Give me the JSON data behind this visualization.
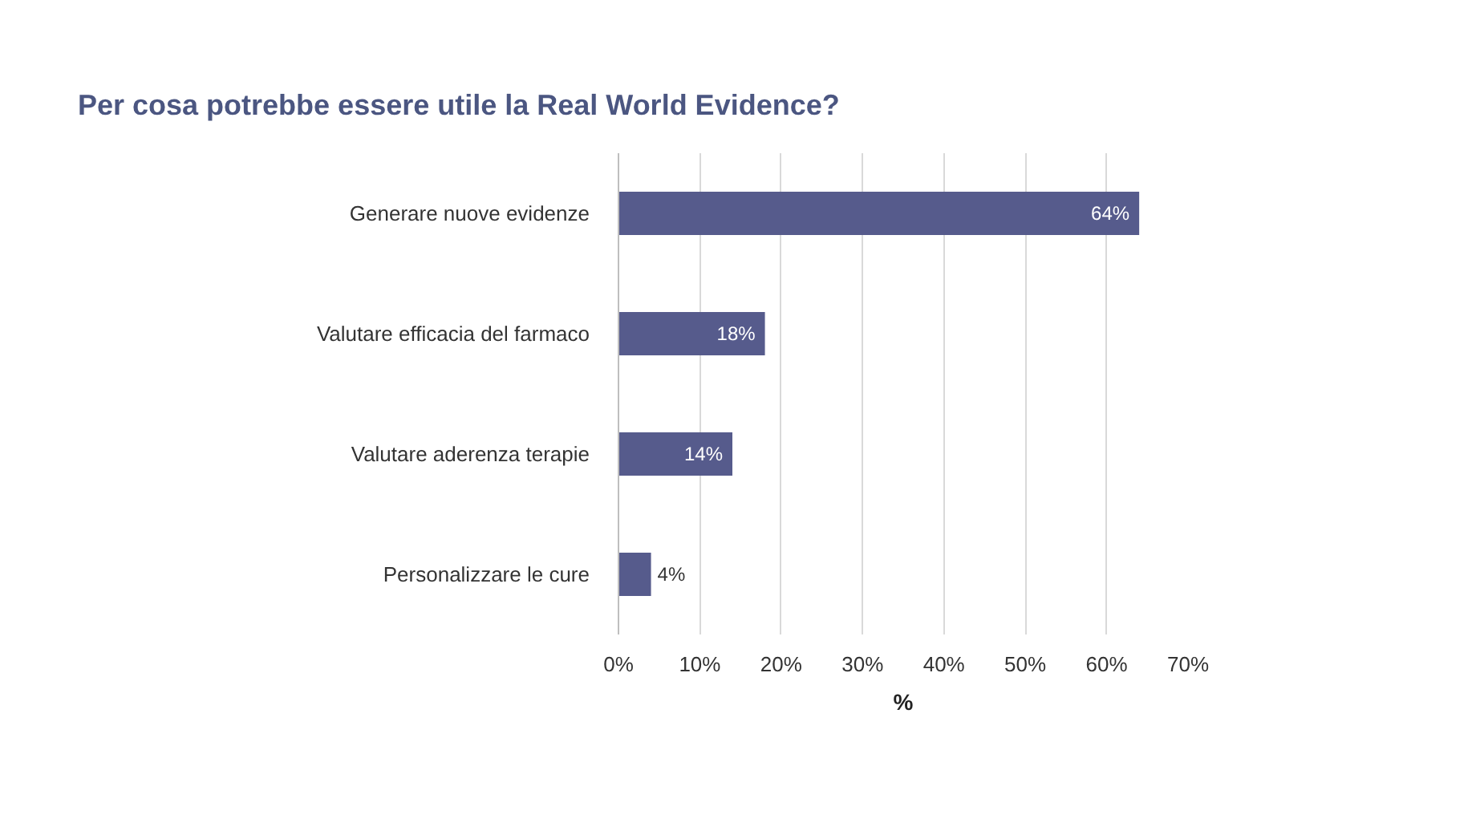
{
  "chart_data": {
    "type": "bar",
    "orientation": "horizontal",
    "title": "Per cosa potrebbe essere utile la Real World Evidence?",
    "xlabel": "%",
    "categories": [
      "Generare nuove evidenze",
      "Valutare efficacia del farmaco",
      "Valutare aderenza terapie",
      "Personalizzare le cure"
    ],
    "values": [
      64,
      18,
      14,
      4
    ],
    "color": "#565b8c",
    "data_labels": true,
    "value_labels": [
      "64%",
      "18%",
      "14%",
      "4%"
    ],
    "xlim": [
      0,
      70
    ],
    "xticks": [
      {
        "value": 0,
        "label": "0%"
      },
      {
        "value": 10,
        "label": "10%"
      },
      {
        "value": 20,
        "label": "20%"
      },
      {
        "value": 30,
        "label": "30%"
      },
      {
        "value": 40,
        "label": "40%"
      },
      {
        "value": 50,
        "label": "50%"
      },
      {
        "value": 60,
        "label": "60%"
      },
      {
        "value": 70,
        "label": "70%"
      }
    ],
    "grid": "x"
  }
}
